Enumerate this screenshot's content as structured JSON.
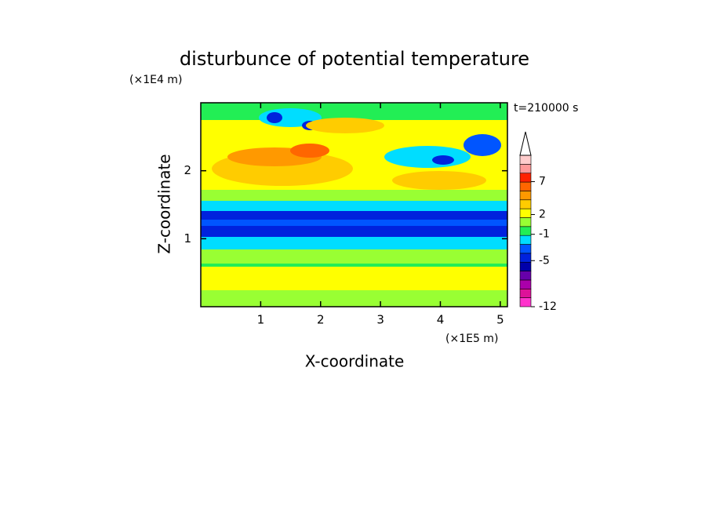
{
  "chart_data": {
    "type": "contour",
    "title": "disturbunce of potential temperature",
    "x_label": "X-coordinate",
    "y_label": "Z-coordinate",
    "x_unit": "(×1E5 m)",
    "y_unit": "(×1E4 m)",
    "annotation": "t=210000 s",
    "xlim": [
      0,
      5.12
    ],
    "ylim": [
      0,
      3
    ],
    "xticks": [
      1,
      2,
      3,
      4,
      5
    ],
    "yticks": [
      1,
      2
    ],
    "colorbar": {
      "lim": [
        -12,
        11
      ],
      "ticks": [
        -12,
        -5,
        -1,
        2,
        7
      ],
      "colors": [
        "#ff33cc",
        "#dd1199",
        "#aa00aa",
        "#6600aa",
        "#0000aa",
        "#0022dd",
        "#0055ff",
        "#00ddff",
        "#22ee55",
        "#99ff33",
        "#ffff00",
        "#ffcc00",
        "#ff9900",
        "#ff6600",
        "#ff2200",
        "#ff9999",
        "#ffcccc"
      ]
    }
  }
}
